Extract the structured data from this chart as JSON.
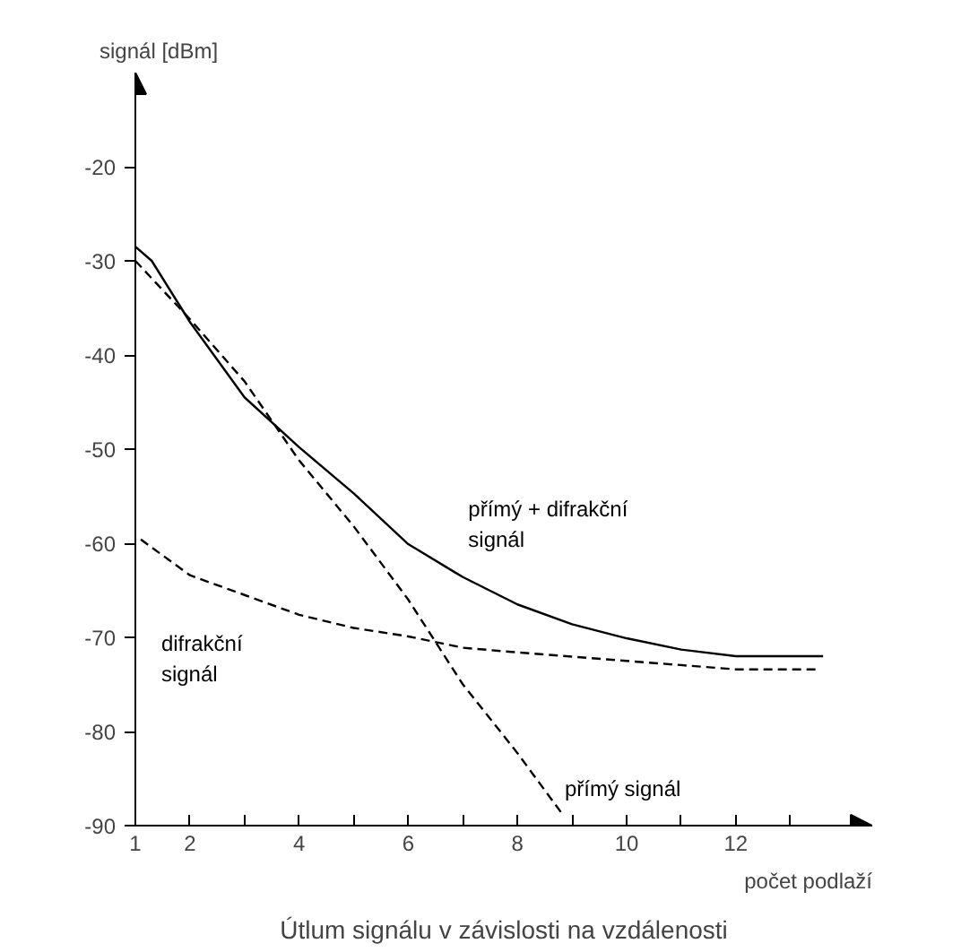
{
  "chart_data": {
    "type": "line",
    "title": "Útlum signálu v závislosti na vzdálenosti",
    "xlabel": "počet podlaží",
    "ylabel": "signál [dBm]",
    "xlim": [
      1,
      14.5
    ],
    "ylim": [
      -90,
      -10
    ],
    "xticks": [
      1,
      2,
      {
        "value": 3,
        "label": null
      },
      4,
      {
        "value": 5,
        "label": null
      },
      6,
      {
        "value": 7,
        "label": null
      },
      8,
      {
        "value": 9,
        "label": null
      },
      10,
      {
        "value": 11,
        "label": null
      },
      12,
      {
        "value": 13,
        "label": null
      }
    ],
    "yticks": [
      -90,
      -80,
      -70,
      -60,
      -50,
      -40,
      -30,
      -20
    ],
    "grid": false,
    "legend": false,
    "marker": "none",
    "series": [
      {
        "name": "přímý + difrakční signál",
        "color": "#000000",
        "line_style": "solid",
        "x": [
          1,
          1.3,
          2,
          3,
          4,
          5,
          6,
          7,
          8,
          9,
          10,
          11,
          12,
          13.6
        ],
        "values": [
          -28.5,
          -30,
          -36.5,
          -44.5,
          -49.8,
          -54.7,
          -60.1,
          -63.6,
          -66.5,
          -68.6,
          -70.1,
          -71.3,
          -72,
          -72
        ]
      },
      {
        "name": "difrakční signál",
        "color": "#000000",
        "line_style": "dashed",
        "x": [
          1.1,
          2,
          3,
          4,
          5,
          6,
          7,
          8,
          10,
          12,
          13.5
        ],
        "values": [
          -59.6,
          -63.4,
          -65.5,
          -67.6,
          -69,
          -69.9,
          -71.1,
          -71.6,
          -72.5,
          -73.4,
          -73.4
        ]
      },
      {
        "name": "přímý signál",
        "color": "#000000",
        "line_style": "dashed",
        "x": [
          1,
          2,
          3,
          4,
          5,
          6,
          7,
          8,
          8.8
        ],
        "values": [
          -30,
          -36.2,
          -42.8,
          -51.2,
          -58.2,
          -66,
          -75,
          -82.3,
          -88.6
        ]
      }
    ]
  }
}
